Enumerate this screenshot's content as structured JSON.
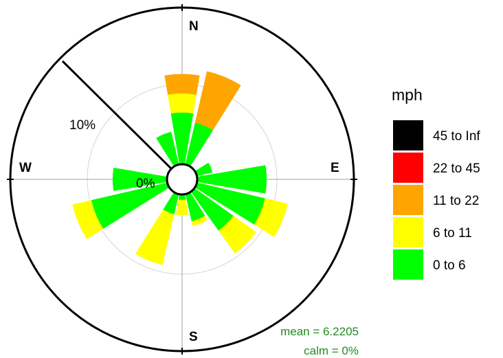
{
  "chart_data": {
    "type": "windrose",
    "directions": [
      "N",
      "NNE",
      "NE",
      "ENE",
      "E",
      "ESE",
      "SE",
      "SSE",
      "S",
      "SSW",
      "SW",
      "WSW",
      "W",
      "WNW",
      "NW",
      "NNW"
    ],
    "direction_angles": [
      0,
      22.5,
      45,
      67.5,
      90,
      112.5,
      135,
      157.5,
      180,
      202.5,
      225,
      247.5,
      270,
      292.5,
      315,
      337.5
    ],
    "units": "mph",
    "series": [
      {
        "name": "0 to 6",
        "color": "#00ff00",
        "values": [
          6.5,
          5.4,
          0,
          2.0,
          8.7,
          8.8,
          6.0,
          3.5,
          0.7,
          2.6,
          0,
          9.8,
          6.8,
          0,
          0,
          4.2
        ]
      },
      {
        "name": "6 to 11",
        "color": "#ffff00",
        "values": [
          2.4,
          0,
          0,
          0,
          0,
          2.9,
          3.5,
          0.6,
          1.9,
          6.5,
          0,
          2.4,
          0,
          0,
          0,
          0
        ]
      },
      {
        "name": "11 to 22",
        "color": "#ffa500",
        "values": [
          2.4,
          6.6,
          0,
          0,
          0,
          0,
          0,
          0,
          0,
          0,
          0,
          0,
          0,
          0,
          0,
          0
        ]
      },
      {
        "name": "22 to 45",
        "color": "#ff0000",
        "values": [
          0,
          0,
          0,
          0,
          0,
          0,
          0,
          0,
          0,
          0,
          0,
          0,
          0,
          0,
          0,
          0
        ]
      },
      {
        "name": "45 to Inf",
        "color": "#000000",
        "values": [
          0,
          0,
          0,
          0,
          0,
          0,
          0,
          0,
          0,
          0,
          0,
          0,
          0,
          0,
          0,
          0
        ]
      }
    ],
    "rings": [
      0,
      10
    ],
    "ring_labels": [
      "0%",
      "10%"
    ],
    "ring_label_angle": 315,
    "max_radius_value": 18.5,
    "compass_labels": {
      "n": "N",
      "e": "E",
      "s": "S",
      "w": "W"
    },
    "mean_text": "mean = 6.2205",
    "calm_text": "calm = 0%",
    "legend_title": "mph",
    "legend_order_top_to_bottom": [
      "45 to Inf",
      "22 to 45",
      "11 to 22",
      "6 to 11",
      "0 to 6"
    ]
  }
}
